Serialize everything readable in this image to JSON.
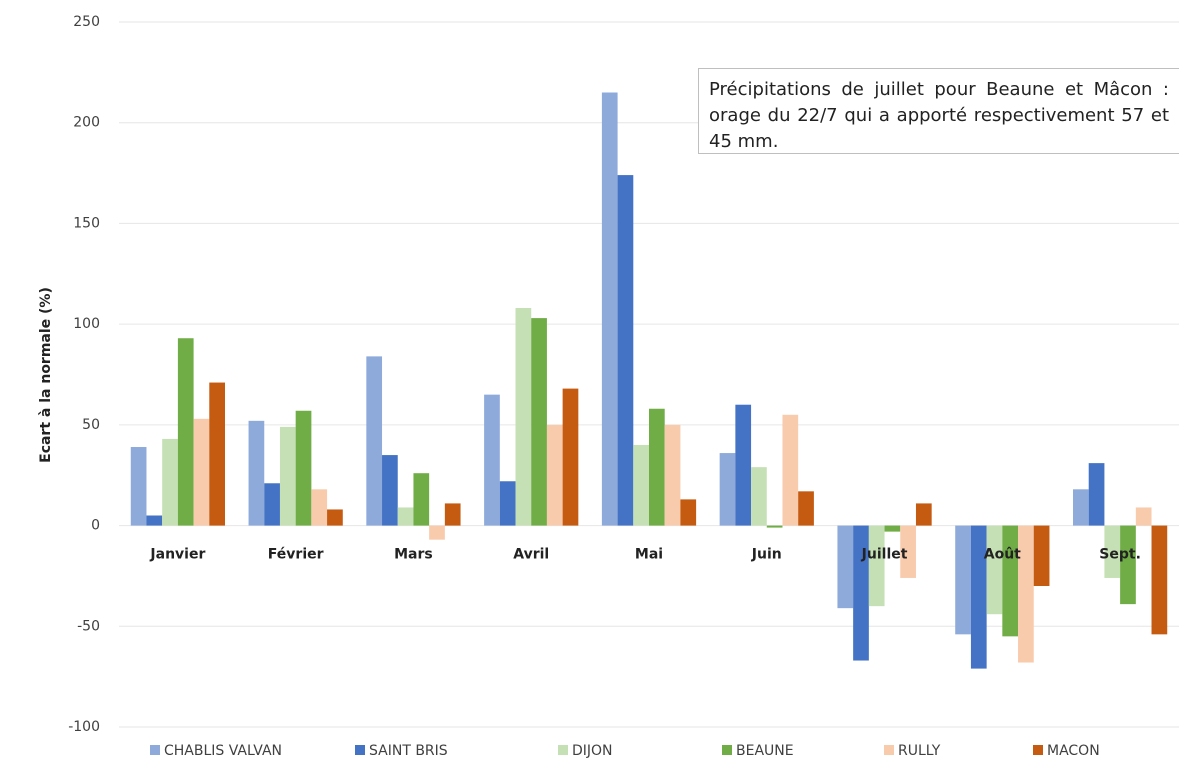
{
  "chart_data": {
    "type": "bar",
    "y_label": "Ecart à la normale (%)",
    "annotation": "Précipitations de juillet pour Beaune et Mâcon : orage du 22/7 qui a apporté respectivement 57 et 45 mm.",
    "categories": [
      "Janvier",
      "Février",
      "Mars",
      "Avril",
      "Mai",
      "Juin",
      "Juillet",
      "Août",
      "Sept."
    ],
    "series": [
      {
        "name": "CHABLIS VALVAN",
        "color": "#8eaadb",
        "values": [
          39,
          52,
          84,
          65,
          215,
          36,
          -41,
          -54,
          18
        ]
      },
      {
        "name": "SAINT  BRIS",
        "color": "#4472c4",
        "values": [
          5,
          21,
          35,
          22,
          174,
          60,
          -67,
          -71,
          31
        ]
      },
      {
        "name": "DIJON",
        "color": "#c5e0b4",
        "values": [
          43,
          49,
          9,
          108,
          40,
          29,
          -40,
          -44,
          -26
        ]
      },
      {
        "name": "BEAUNE",
        "color": "#70ad47",
        "values": [
          93,
          57,
          26,
          103,
          58,
          -1,
          -3,
          -55,
          -39
        ]
      },
      {
        "name": "RULLY",
        "color": "#f8cbad",
        "values": [
          53,
          18,
          -7,
          50,
          50,
          55,
          -26,
          -68,
          9
        ]
      },
      {
        "name": "MACON",
        "color": "#c55a11",
        "values": [
          71,
          8,
          11,
          68,
          13,
          17,
          11,
          -30,
          -54
        ]
      }
    ],
    "ylim": [
      -100,
      250
    ],
    "yticks": [
      -100,
      -50,
      0,
      50,
      100,
      150,
      200,
      250
    ],
    "grid": true
  }
}
